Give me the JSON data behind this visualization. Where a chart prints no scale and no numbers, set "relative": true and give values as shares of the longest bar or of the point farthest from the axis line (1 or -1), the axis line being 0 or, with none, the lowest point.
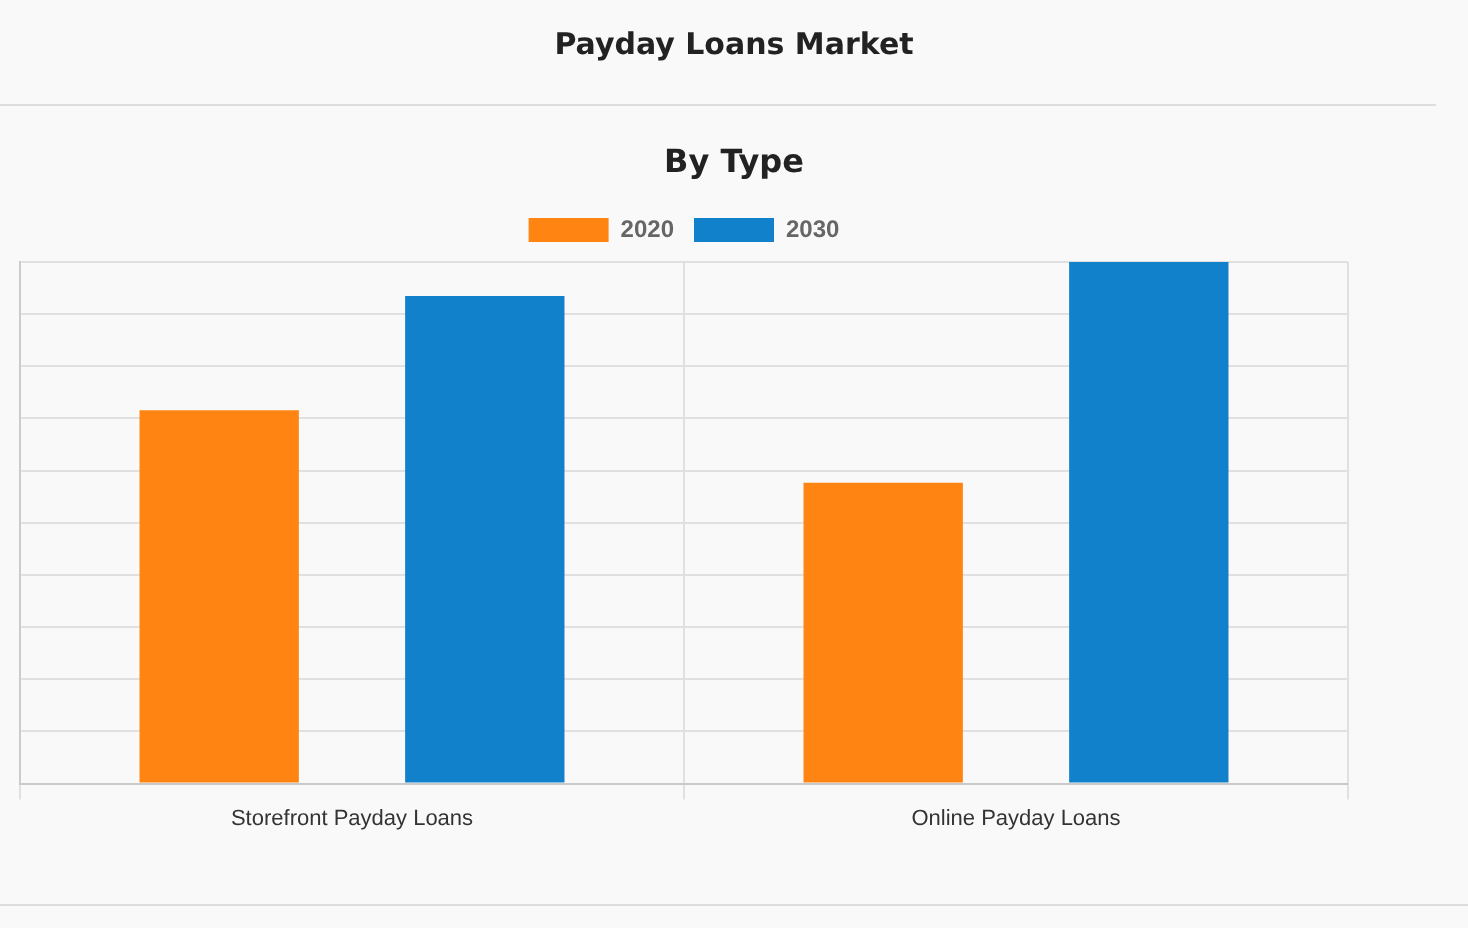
{
  "chart_data": {
    "type": "bar",
    "title": "Payday Loans Market",
    "subtitle": "By Type",
    "categories": [
      "Storefront Payday Loans",
      "Online Payday Loans"
    ],
    "relative": true,
    "series": [
      {
        "name": "2020",
        "color": "#ff8412",
        "values": [
          0.716,
          0.577
        ]
      },
      {
        "name": "2030",
        "color": "#1181cb",
        "values": [
          0.935,
          1
        ]
      }
    ],
    "grid": true,
    "legend": "top"
  }
}
